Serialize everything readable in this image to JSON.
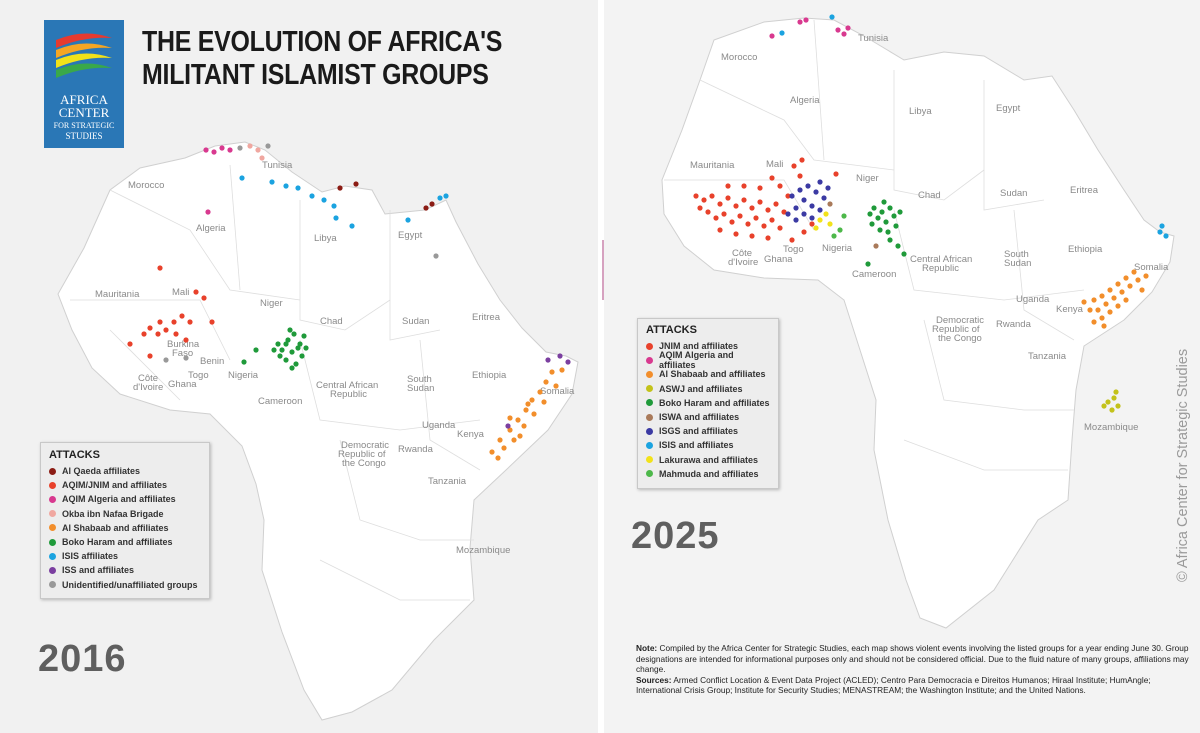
{
  "title_lines": [
    "THE EVOLUTION OF AFRICA'S",
    "MILITANT ISLAMIST GROUPS"
  ],
  "logo": {
    "lines": [
      "AFRICA",
      "CENTER",
      "FOR STRATEGIC",
      "STUDIES"
    ]
  },
  "colors": {
    "al_qaeda": "#8b1c14",
    "jnim": "#e8412b",
    "aqim_algeria": "#d8398f",
    "okba": "#f0a7a0",
    "al_shabaab": "#f28e2b",
    "boko_haram": "#1f9a3a",
    "isis": "#1ba3e0",
    "iss": "#7b3fa0",
    "unidentified": "#999999",
    "asvj": "#c3c21a",
    "iswa": "#a97a5a",
    "isgs": "#3b3aa3",
    "lakurawa": "#f2e21a",
    "mahmuda": "#4db84a"
  },
  "left_map": {
    "year": "2016",
    "legend": {
      "title": "ATTACKS",
      "items": [
        {
          "label": "Al Qaeda affiliates",
          "color": "#8b1c14"
        },
        {
          "label": "AQIM/JNIM and affiliates",
          "color": "#e8412b"
        },
        {
          "label": "AQIM Algeria and affiliates",
          "color": "#d8398f"
        },
        {
          "label": "Okba ibn Nafaa Brigade",
          "color": "#f0a7a0"
        },
        {
          "label": "Al Shabaab and affiliates",
          "color": "#f28e2b"
        },
        {
          "label": "Boko Haram and affiliates",
          "color": "#1f9a3a"
        },
        {
          "label": "ISIS affiliates",
          "color": "#1ba3e0"
        },
        {
          "label": "ISS and affiliates",
          "color": "#7b3fa0"
        },
        {
          "label": "Unidentified/unaffiliated groups",
          "color": "#999999"
        }
      ]
    },
    "countries": [
      "Tunisia",
      "Morocco",
      "Algeria",
      "Libya",
      "Egypt",
      "Mauritania",
      "Mali",
      "Niger",
      "Chad",
      "Sudan",
      "Eritrea",
      "Burkina Faso",
      "Benin",
      "Togo",
      "Nigeria",
      "Côte d'Ivoire",
      "Ghana",
      "Ethiopia",
      "Somalia",
      "South Sudan",
      "Central African Republic",
      "Cameroon",
      "Uganda",
      "Kenya",
      "Rwanda",
      "Democratic Republic of the Congo",
      "Tanzania",
      "Mozambique"
    ]
  },
  "right_map": {
    "year": "2025",
    "legend": {
      "title": "ATTACKS",
      "items": [
        {
          "label": "JNIM and affiliates",
          "color": "#e8412b"
        },
        {
          "label": "AQIM Algeria and affiliates",
          "color": "#d8398f"
        },
        {
          "label": "Al Shabaab and affiliates",
          "color": "#f28e2b"
        },
        {
          "label": "ASWJ and affiliates",
          "color": "#c3c21a"
        },
        {
          "label": "Boko Haram and affiliates",
          "color": "#1f9a3a"
        },
        {
          "label": "ISWA and affiliates",
          "color": "#a97a5a"
        },
        {
          "label": "ISGS and affiliates",
          "color": "#3b3aa3"
        },
        {
          "label": "ISIS and affiliates",
          "color": "#1ba3e0"
        },
        {
          "label": "Lakurawa and affiliates",
          "color": "#f2e21a"
        },
        {
          "label": "Mahmuda and affiliates",
          "color": "#4db84a"
        }
      ]
    },
    "countries": [
      "Tunisia",
      "Morocco",
      "Algeria",
      "Libya",
      "Egypt",
      "Mauritania",
      "Mali",
      "Niger",
      "Chad",
      "Sudan",
      "Eritrea",
      "Côte d'Ivoire",
      "Togo",
      "Ghana",
      "Nigeria",
      "Ethiopia",
      "Central African Republic",
      "Cameroon",
      "South Sudan",
      "Somalia",
      "Uganda",
      "Kenya",
      "Democratic Republic of the Congo",
      "Rwanda",
      "Tanzania",
      "Mozambique"
    ]
  },
  "note": {
    "note_label": "Note:",
    "note_text": " Compiled by the Africa Center for Strategic Studies, each map shows violent events involving the listed groups for a year ending June 30. Group designations are intended for informational purposes only and should not be considered official. Due to the fluid nature of many groups, affiliations may change.",
    "sources_label": "Sources:",
    "sources_text": " Armed Conflict Location & Event Data Project (ACLED); Centro Para Democracia e Direitos Humanos; Hiraal Institute; HumAngle; International Crisis Group; Institute for Security Studies; MENASTREAM; the Washington Institute; and the United Nations."
  },
  "copyright": "© Africa Center for Strategic Studies"
}
